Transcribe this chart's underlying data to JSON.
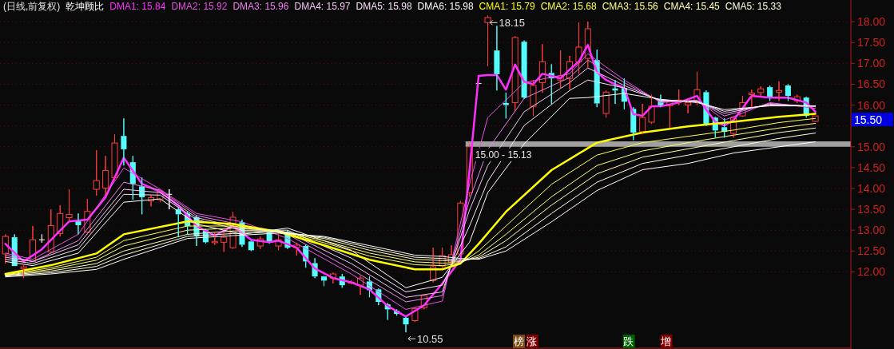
{
  "chart_data": {
    "type": "candlestick",
    "title": "(日线,前复权)",
    "subtitle": "乾坤顾比",
    "legend": "top left",
    "grid": "y",
    "tick_labels": "y",
    "ylim": [
      10.15,
      18.52
    ],
    "yticks": [
      {
        "value": 12,
        "label": "12.00"
      },
      {
        "value": 12.5,
        "label": "12.50"
      },
      {
        "value": 13,
        "label": "13.00"
      },
      {
        "value": 13.5,
        "label": "13.50"
      },
      {
        "value": 14,
        "label": "14.00"
      },
      {
        "value": 14.5,
        "label": "14.50"
      },
      {
        "value": 15,
        "label": "15.00"
      },
      {
        "value": 15.5,
        "label": null
      },
      {
        "value": 16,
        "label": "16.00"
      },
      {
        "value": 16.5,
        "label": "16.50"
      },
      {
        "value": 17,
        "label": "17.00"
      },
      {
        "value": 17.5,
        "label": "17.50"
      },
      {
        "value": 18,
        "label": "18.00"
      }
    ],
    "categories": [
      null,
      null,
      null,
      null,
      null,
      null,
      null,
      null,
      null,
      null,
      null,
      null,
      null,
      null,
      null,
      null,
      null,
      null,
      null,
      null,
      null,
      null,
      null,
      null,
      null,
      null,
      null,
      null,
      null,
      null,
      null,
      null,
      null,
      null,
      null,
      null,
      null,
      null,
      null,
      null,
      null,
      null,
      null,
      null,
      null,
      null,
      null,
      null,
      null,
      null,
      null,
      null,
      null,
      null,
      null,
      null,
      null,
      null,
      null,
      null,
      null,
      null,
      null,
      null,
      null,
      null,
      null,
      null,
      null,
      null,
      null,
      null,
      null,
      null,
      null,
      null,
      null,
      null,
      null,
      null,
      null,
      null,
      null,
      null,
      null,
      null,
      null,
      null,
      null,
      null
    ],
    "ohlc": [
      [
        12.43,
        12.9,
        12.2,
        12.85
      ],
      [
        12.83,
        12.9,
        12.14,
        12.14
      ],
      [
        12.08,
        12.2,
        11.85,
        12.12
      ],
      [
        12.25,
        13.1,
        12.25,
        12.77
      ],
      [
        12.77,
        12.9,
        12.7,
        12.77
      ],
      [
        12.48,
        13.5,
        12.45,
        13.11
      ],
      [
        12.92,
        13.6,
        12.85,
        13.4
      ],
      [
        13.3,
        13.98,
        13.2,
        13.38
      ],
      [
        13.22,
        13.4,
        12.9,
        13.12
      ],
      [
        12.95,
        13.75,
        12.9,
        13.45
      ],
      [
        13.98,
        14.92,
        13.83,
        14.19
      ],
      [
        14.01,
        14.78,
        13.83,
        14.43
      ],
      [
        14.26,
        15.3,
        14.2,
        15.09
      ],
      [
        15.26,
        15.68,
        14.55,
        14.94
      ],
      [
        14.63,
        14.78,
        13.73,
        14.11
      ],
      [
        14.05,
        14.26,
        13.38,
        13.79
      ],
      [
        13.7,
        13.85,
        13.57,
        13.78
      ],
      [
        13.73,
        13.95,
        13.67,
        13.92
      ],
      [
        13.86,
        13.98,
        13.5,
        13.86
      ],
      [
        13.5,
        13.55,
        12.83,
        13.38
      ],
      [
        13.4,
        13.45,
        12.9,
        13.1
      ],
      [
        13.31,
        13.35,
        12.62,
        12.85
      ],
      [
        13.0,
        13.03,
        12.68,
        12.71
      ],
      [
        12.7,
        12.96,
        12.65,
        12.73
      ],
      [
        12.71,
        12.95,
        12.48,
        12.83
      ],
      [
        12.58,
        13.44,
        12.55,
        13.31
      ],
      [
        13.19,
        13.25,
        12.6,
        12.65
      ],
      [
        12.73,
        12.75,
        12.5,
        12.52
      ],
      [
        12.62,
        12.85,
        12.55,
        12.79
      ],
      [
        12.95,
        12.97,
        12.68,
        12.7
      ],
      [
        12.62,
        12.92,
        12.52,
        12.77
      ],
      [
        12.96,
        13.0,
        12.55,
        12.58
      ],
      [
        12.58,
        12.7,
        12.39,
        12.64
      ],
      [
        12.62,
        12.65,
        12.1,
        12.25
      ],
      [
        12.21,
        12.33,
        11.85,
        11.89
      ],
      [
        11.89,
        11.9,
        11.66,
        11.79
      ],
      [
        11.85,
        11.98,
        11.72,
        11.95
      ],
      [
        11.89,
        11.95,
        11.62,
        11.68
      ],
      [
        11.73,
        11.8,
        11.7,
        11.75
      ],
      [
        11.68,
        11.9,
        11.45,
        11.85
      ],
      [
        11.77,
        11.89,
        11.39,
        11.56
      ],
      [
        11.58,
        11.6,
        11.2,
        11.28
      ],
      [
        11.22,
        11.25,
        10.85,
        11.1
      ],
      [
        11.07,
        11.1,
        10.95,
        10.99
      ],
      [
        10.9,
        10.92,
        10.55,
        10.74
      ],
      [
        10.83,
        11.15,
        10.8,
        11.12
      ],
      [
        11.14,
        11.45,
        11.1,
        11.43
      ],
      [
        11.79,
        12.58,
        11.75,
        12.12
      ],
      [
        12.14,
        12.58,
        12.1,
        12.39
      ],
      [
        12.23,
        12.64,
        12.2,
        12.41
      ],
      [
        12.43,
        13.7,
        12.4,
        13.65
      ],
      [
        13.9,
        15.05,
        13.8,
        15.0
      ],
      [
        16.52,
        16.52,
        16.52,
        16.52
      ],
      [
        17.98,
        18.15,
        16.93,
        18.1
      ],
      [
        17.31,
        17.9,
        16.35,
        16.74
      ],
      [
        16.05,
        16.3,
        15.68,
        16.0
      ],
      [
        16.06,
        17.65,
        15.87,
        17.62
      ],
      [
        17.52,
        17.55,
        16.15,
        16.18
      ],
      [
        15.97,
        16.6,
        15.74,
        16.47
      ],
      [
        16.54,
        17.46,
        16.3,
        17.04
      ],
      [
        16.77,
        16.98,
        16.03,
        16.64
      ],
      [
        16.6,
        17.31,
        16.41,
        16.7
      ],
      [
        16.64,
        17.18,
        16.37,
        17.04
      ],
      [
        17.04,
        17.98,
        16.75,
        17.39
      ],
      [
        17.12,
        18.0,
        16.9,
        17.83
      ],
      [
        17.08,
        17.33,
        15.95,
        16.04
      ],
      [
        15.8,
        16.35,
        15.7,
        16.31
      ],
      [
        16.4,
        16.6,
        16.03,
        16.35
      ],
      [
        16.41,
        16.64,
        15.9,
        16.08
      ],
      [
        15.91,
        15.95,
        15.16,
        15.34
      ],
      [
        15.36,
        16.03,
        15.3,
        15.7
      ],
      [
        15.59,
        16.25,
        15.55,
        15.97
      ],
      [
        16.12,
        16.25,
        15.95,
        15.99
      ],
      [
        15.98,
        16.1,
        15.45,
        16.08
      ],
      [
        16.07,
        16.37,
        16.0,
        16.12
      ],
      [
        16.0,
        16.1,
        15.8,
        16.06
      ],
      [
        16.07,
        16.8,
        16.0,
        16.37
      ],
      [
        16.31,
        16.35,
        15.5,
        15.55
      ],
      [
        15.7,
        15.72,
        15.22,
        15.39
      ],
      [
        15.47,
        15.68,
        15.22,
        15.36
      ],
      [
        15.32,
        15.72,
        15.22,
        15.7
      ],
      [
        15.74,
        16.22,
        15.72,
        16.06
      ],
      [
        16.25,
        16.37,
        15.95,
        16.29
      ],
      [
        16.3,
        16.45,
        16.2,
        16.39
      ],
      [
        16.43,
        16.47,
        16.1,
        16.18
      ],
      [
        16.31,
        16.57,
        16.1,
        16.35
      ],
      [
        16.47,
        16.5,
        16.1,
        16.22
      ],
      [
        16.1,
        16.25,
        16.05,
        16.2
      ],
      [
        16.18,
        16.2,
        15.7,
        15.74
      ],
      [
        15.61,
        15.74,
        15.6,
        15.74
      ]
    ],
    "colors": [
      "#ff3c3c",
      "#54fcfc",
      "#ff3c3c",
      "#ff3c3c",
      "#ffffff",
      "#ff3c3c",
      "#ff3c3c",
      "#ff3c3c",
      "#54fcfc",
      "#ff3c3c",
      "#ff3c3c",
      "#ff3c3c",
      "#ff3c3c",
      "#54fcfc",
      "#54fcfc",
      "#54fcfc",
      "#ff3c3c",
      "#ff3c3c",
      "#ffffff",
      "#54fcfc",
      "#54fcfc",
      "#54fcfc",
      "#54fcfc",
      "#ff3c3c",
      "#ff3c3c",
      "#ff3c3c",
      "#54fcfc",
      "#54fcfc",
      "#ff3c3c",
      "#54fcfc",
      "#ff3c3c",
      "#54fcfc",
      "#ff3c3c",
      "#54fcfc",
      "#54fcfc",
      "#54fcfc",
      "#ff3c3c",
      "#54fcfc",
      "#ff3c3c",
      "#ff3c3c",
      "#54fcfc",
      "#54fcfc",
      "#54fcfc",
      "#54fcfc",
      "#54fcfc",
      "#ff3c3c",
      "#ff3c3c",
      "#ff3c3c",
      "#ff3c3c",
      "#ff3c3c",
      "#ff3c3c",
      "#ff3c3c",
      "#ffffff",
      "#ff3c3c",
      "#54fcfc",
      "#54fcfc",
      "#ff3c3c",
      "#54fcfc",
      "#ff3c3c",
      "#ff3c3c",
      "#54fcfc",
      "#ff3c3c",
      "#ff3c3c",
      "#ff3c3c",
      "#ff3c3c",
      "#54fcfc",
      "#ff3c3c",
      "#54fcfc",
      "#54fcfc",
      "#54fcfc",
      "#ff3c3c",
      "#ff3c3c",
      "#54fcfc",
      "#ff3c3c",
      "#ff3c3c",
      "#ff3c3c",
      "#ff3c3c",
      "#54fcfc",
      "#54fcfc",
      "#54fcfc",
      "#ff3c3c",
      "#ff3c3c",
      "#ff3c3c",
      "#ff3c3c",
      "#54fcfc",
      "#ff3c3c",
      "#54fcfc",
      "#ff3c3c",
      "#54fcfc",
      "#ff3c3c"
    ],
    "series": [
      {
        "type": "line",
        "name": "DMA1: 15.84",
        "color": "#ff30ff",
        "values": [
          12.67,
          null,
          12.25,
          null,
          12.54,
          null,
          null,
          13.21,
          null,
          13.25,
          null,
          13.79,
          null,
          14.74,
          null,
          14.11,
          null,
          13.92,
          null,
          13.59,
          null,
          13.1,
          null,
          12.87,
          null,
          13.1,
          null,
          12.77,
          null,
          12.71,
          12.75,
          null,
          12.58,
          null,
          12.08,
          null,
          11.85,
          null,
          11.75,
          null,
          11.58,
          null,
          11.18,
          null,
          10.93,
          null,
          11.2,
          null,
          11.72,
          null,
          12.29,
          14.44,
          16.7,
          16.72,
          16.72,
          16.37,
          16.97,
          16.56,
          16.5,
          16.75,
          16.7,
          16.64,
          16.85,
          17.04,
          17.44,
          16.79,
          16.6,
          16.5,
          16.41,
          15.78,
          15.74,
          15.97,
          15.97,
          null,
          16.06,
          null,
          16.22,
          15.89,
          15.6,
          15.51,
          15.64,
          null,
          16.22,
          null,
          16.18,
          null,
          16.18,
          null,
          16.06,
          15.84
        ]
      },
      {
        "type": "line",
        "name": "DMA2: 15.92",
        "color": "#e850e8",
        "values": [
          12.45,
          null,
          null,
          12.3,
          null,
          null,
          null,
          null,
          12.9,
          null,
          null,
          null,
          null,
          14.49,
          null,
          null,
          null,
          13.98,
          null,
          null,
          null,
          13.4,
          null,
          null,
          null,
          null,
          13.2,
          null,
          null,
          null,
          null,
          12.8,
          null,
          null,
          null,
          null,
          null,
          null,
          11.95,
          null,
          null,
          null,
          null,
          null,
          11.1,
          null,
          null,
          null,
          11.3,
          null,
          null,
          14.1,
          null,
          15.7,
          null,
          null,
          null,
          16.54,
          null,
          null,
          null,
          null,
          16.75,
          null,
          17.23,
          null,
          null,
          null,
          16.6,
          null,
          null,
          null,
          16.06,
          null,
          null,
          null,
          16.12,
          null,
          null,
          15.64,
          null,
          null,
          null,
          null,
          16.06,
          null,
          null,
          null,
          null,
          15.92
        ]
      },
      {
        "type": "line",
        "name": "DMA3: 15.96",
        "color": "#ee80ee",
        "values": [
          12.4,
          null,
          null,
          12.25,
          null,
          null,
          null,
          null,
          12.75,
          null,
          null,
          null,
          null,
          14.15,
          null,
          null,
          null,
          13.96,
          null,
          null,
          null,
          13.35,
          null,
          null,
          null,
          null,
          13.12,
          null,
          null,
          null,
          null,
          12.9,
          null,
          null,
          null,
          null,
          null,
          null,
          12.06,
          null,
          null,
          null,
          null,
          null,
          11.28,
          null,
          null,
          null,
          11.43,
          null,
          null,
          13.73,
          null,
          14.93,
          null,
          null,
          null,
          16.16,
          null,
          null,
          null,
          null,
          16.66,
          null,
          17.08,
          null,
          null,
          null,
          16.54,
          null,
          null,
          null,
          16.08,
          null,
          null,
          null,
          16.1,
          null,
          null,
          15.74,
          null,
          null,
          null,
          null,
          16.04,
          null,
          null,
          null,
          null,
          15.96
        ]
      },
      {
        "type": "line",
        "name": "DMA4: 15.97",
        "color": "#f4c4f4",
        "values": [
          12.35,
          null,
          null,
          12.25,
          null,
          null,
          null,
          null,
          12.65,
          null,
          null,
          null,
          null,
          13.98,
          null,
          null,
          null,
          13.9,
          null,
          null,
          null,
          13.3,
          null,
          null,
          null,
          null,
          13.05,
          null,
          null,
          null,
          null,
          12.95,
          null,
          null,
          null,
          null,
          null,
          null,
          12.2,
          null,
          null,
          null,
          null,
          null,
          11.39,
          null,
          null,
          null,
          11.52,
          null,
          null,
          13.48,
          null,
          14.55,
          null,
          null,
          null,
          15.84,
          null,
          null,
          null,
          null,
          16.54,
          null,
          16.89,
          null,
          null,
          null,
          16.47,
          null,
          null,
          null,
          16.1,
          null,
          null,
          null,
          16.1,
          null,
          null,
          15.8,
          null,
          null,
          null,
          null,
          16.02,
          null,
          null,
          null,
          null,
          15.97
        ]
      },
      {
        "type": "line",
        "name": "DMA5: 15.98",
        "color": "#fae4fa",
        "values": [
          12.3,
          null,
          null,
          12.2,
          null,
          null,
          null,
          null,
          12.55,
          null,
          null,
          null,
          null,
          13.86,
          null,
          null,
          null,
          13.84,
          null,
          null,
          null,
          13.25,
          null,
          null,
          null,
          null,
          13.0,
          null,
          null,
          null,
          null,
          13.0,
          null,
          null,
          null,
          null,
          null,
          null,
          12.33,
          null,
          null,
          null,
          null,
          null,
          11.52,
          null,
          null,
          null,
          11.68,
          null,
          null,
          13.1,
          null,
          14.17,
          null,
          null,
          null,
          15.51,
          null,
          null,
          null,
          null,
          16.35,
          null,
          16.6,
          null,
          null,
          null,
          16.41,
          null,
          null,
          null,
          16.12,
          null,
          null,
          null,
          16.08,
          null,
          null,
          15.85,
          null,
          null,
          null,
          null,
          16.0,
          null,
          null,
          null,
          null,
          15.98
        ]
      },
      {
        "type": "line",
        "name": "DMA6: 15.98",
        "color": "#ffffff",
        "values": [
          12.25,
          null,
          null,
          12.15,
          null,
          null,
          null,
          null,
          12.45,
          null,
          null,
          null,
          null,
          13.67,
          null,
          null,
          null,
          13.75,
          null,
          null,
          null,
          13.15,
          null,
          null,
          null,
          null,
          12.9,
          null,
          null,
          null,
          null,
          13.05,
          null,
          null,
          null,
          null,
          null,
          null,
          12.52,
          null,
          null,
          null,
          null,
          null,
          11.62,
          null,
          null,
          null,
          11.87,
          null,
          null,
          12.71,
          null,
          13.9,
          null,
          null,
          null,
          15.07,
          null,
          null,
          null,
          null,
          16.16,
          null,
          16.18,
          null,
          null,
          null,
          16.28,
          null,
          null,
          null,
          16.14,
          null,
          null,
          null,
          16.06,
          null,
          null,
          15.89,
          null,
          null,
          null,
          null,
          15.98,
          null,
          null,
          null,
          null,
          15.98
        ]
      },
      {
        "type": "line",
        "name": "CMA1: 15.79",
        "color": "#ffff00",
        "values": [
          11.95,
          null,
          null,
          null,
          null,
          12.16,
          null,
          null,
          null,
          null,
          12.44,
          null,
          null,
          12.9,
          null,
          null,
          null,
          null,
          null,
          null,
          13.21,
          null,
          null,
          null,
          null,
          13.15,
          null,
          null,
          null,
          null,
          12.96,
          null,
          null,
          null,
          null,
          12.64,
          null,
          null,
          null,
          null,
          12.29,
          null,
          null,
          null,
          null,
          12.06,
          null,
          null,
          12.06,
          null,
          12.2,
          null,
          12.67,
          null,
          null,
          13.44,
          null,
          null,
          null,
          null,
          14.44,
          null,
          null,
          null,
          null,
          15.1,
          null,
          null,
          null,
          null,
          15.34,
          null,
          null,
          null,
          null,
          15.49,
          null,
          null,
          null,
          null,
          15.6,
          null,
          null,
          null,
          null,
          15.72,
          null,
          null,
          null,
          15.79
        ]
      },
      {
        "type": "line",
        "name": "CMA2: 15.68",
        "color": "#ffff50",
        "values": [
          11.93,
          null,
          null,
          null,
          null,
          12.1,
          null,
          null,
          null,
          null,
          12.35,
          null,
          null,
          12.75,
          null,
          null,
          null,
          null,
          null,
          null,
          13.1,
          null,
          null,
          null,
          null,
          13.1,
          null,
          null,
          null,
          null,
          12.98,
          null,
          null,
          null,
          null,
          12.7,
          null,
          null,
          null,
          null,
          12.38,
          null,
          null,
          null,
          null,
          12.17,
          null,
          null,
          12.15,
          null,
          12.2,
          null,
          12.5,
          null,
          null,
          13.1,
          null,
          null,
          null,
          null,
          14.1,
          null,
          null,
          null,
          null,
          14.8,
          null,
          null,
          null,
          null,
          15.1,
          null,
          null,
          null,
          null,
          15.25,
          null,
          null,
          null,
          null,
          15.4,
          null,
          null,
          null,
          null,
          15.58,
          null,
          null,
          null,
          15.68
        ]
      },
      {
        "type": "line",
        "name": "CMA3: 15.56",
        "color": "#ffff80",
        "values": [
          11.92,
          null,
          null,
          null,
          null,
          12.06,
          null,
          null,
          null,
          null,
          12.28,
          null,
          null,
          12.62,
          null,
          null,
          null,
          null,
          null,
          null,
          13.0,
          null,
          null,
          null,
          null,
          13.05,
          null,
          null,
          null,
          null,
          12.99,
          null,
          null,
          null,
          null,
          12.75,
          null,
          null,
          null,
          null,
          12.45,
          null,
          null,
          null,
          null,
          12.24,
          null,
          null,
          12.21,
          null,
          12.22,
          null,
          12.4,
          null,
          null,
          12.9,
          null,
          null,
          null,
          null,
          13.8,
          null,
          null,
          null,
          null,
          14.55,
          null,
          null,
          null,
          null,
          14.9,
          null,
          null,
          null,
          null,
          15.1,
          null,
          null,
          null,
          null,
          15.28,
          null,
          null,
          null,
          null,
          15.45,
          null,
          null,
          null,
          15.56
        ]
      },
      {
        "type": "line",
        "name": "CMA4: 15.45",
        "color": "#ffffb8",
        "values": [
          11.91,
          null,
          null,
          null,
          null,
          12.02,
          null,
          null,
          null,
          null,
          12.2,
          null,
          null,
          12.5,
          null,
          null,
          null,
          null,
          null,
          null,
          12.9,
          null,
          null,
          null,
          null,
          12.98,
          null,
          null,
          null,
          null,
          12.98,
          null,
          null,
          null,
          null,
          12.8,
          null,
          null,
          null,
          null,
          12.52,
          null,
          null,
          null,
          null,
          12.3,
          null,
          null,
          12.27,
          null,
          12.25,
          null,
          12.35,
          null,
          null,
          12.75,
          null,
          null,
          null,
          null,
          13.6,
          null,
          null,
          null,
          null,
          14.35,
          null,
          null,
          null,
          null,
          14.75,
          null,
          null,
          null,
          null,
          14.95,
          null,
          null,
          null,
          null,
          15.15,
          null,
          null,
          null,
          null,
          15.34,
          null,
          null,
          null,
          15.45
        ]
      },
      {
        "type": "line",
        "name": "CMA5: 15.33",
        "color": "#ffffe0",
        "values": [
          11.9,
          null,
          null,
          null,
          null,
          11.98,
          null,
          null,
          null,
          null,
          12.13,
          null,
          null,
          12.4,
          null,
          null,
          null,
          null,
          null,
          null,
          12.85,
          null,
          null,
          null,
          null,
          12.92,
          null,
          null,
          null,
          null,
          12.96,
          null,
          null,
          null,
          null,
          12.83,
          null,
          null,
          null,
          null,
          12.58,
          null,
          null,
          null,
          null,
          12.35,
          null,
          null,
          12.32,
          null,
          12.28,
          null,
          12.32,
          null,
          null,
          12.6,
          null,
          null,
          null,
          null,
          13.4,
          null,
          null,
          null,
          null,
          14.15,
          null,
          null,
          null,
          null,
          14.6,
          null,
          null,
          null,
          null,
          14.8,
          null,
          null,
          null,
          null,
          15.0,
          null,
          null,
          null,
          null,
          15.2,
          null,
          null,
          null,
          15.33
        ]
      },
      {
        "type": "line",
        "color": "#ffffff",
        "values": [
          11.88,
          null,
          null,
          null,
          null,
          11.95,
          null,
          null,
          null,
          null,
          12.06,
          null,
          null,
          12.3,
          null,
          null,
          null,
          null,
          null,
          null,
          12.8,
          null,
          null,
          null,
          null,
          12.87,
          null,
          null,
          null,
          null,
          12.93,
          null,
          null,
          null,
          null,
          12.85,
          null,
          null,
          null,
          null,
          12.63,
          null,
          null,
          null,
          null,
          12.4,
          null,
          null,
          12.37,
          null,
          12.32,
          null,
          12.3,
          null,
          null,
          12.5,
          null,
          null,
          null,
          null,
          13.2,
          null,
          null,
          null,
          null,
          13.95,
          null,
          null,
          null,
          null,
          14.45,
          null,
          null,
          null,
          null,
          14.6,
          null,
          null,
          null,
          null,
          14.85,
          null,
          null,
          null,
          null,
          15.0,
          null,
          null,
          null,
          15.12
        ]
      }
    ],
    "bands": [
      {
        "axis": "y",
        "from": 15.0,
        "to": 15.13,
        "label": "15.00 - 15.13",
        "color": "#a0a0a0"
      }
    ],
    "annotations": [
      "18.15",
      "10.55",
      "15.50",
      "榜",
      "涨",
      "跌",
      "增"
    ]
  }
}
